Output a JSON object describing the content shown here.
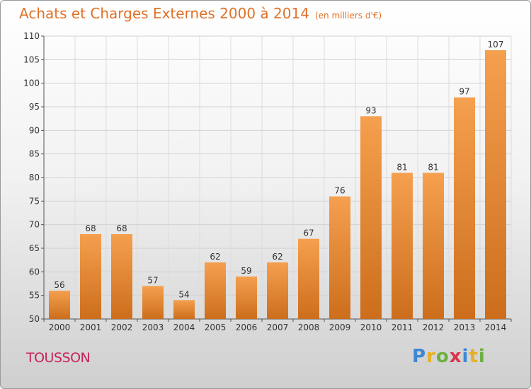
{
  "title": "Achats et Charges Externes 2000 à 2014",
  "unit": "(en milliers d'€)",
  "place": "TOUSSON",
  "logo": {
    "letters": [
      "P",
      "r",
      "o",
      "x",
      "i",
      "t",
      "i"
    ],
    "colors": [
      "#3d87d6",
      "#e8b020",
      "#6cb040",
      "#d8354a",
      "#3d87d6",
      "#e8b020",
      "#6cb040"
    ]
  },
  "chart_data": {
    "type": "bar",
    "categories": [
      "2000",
      "2001",
      "2002",
      "2003",
      "2004",
      "2005",
      "2006",
      "2007",
      "2008",
      "2009",
      "2010",
      "2011",
      "2012",
      "2013",
      "2014"
    ],
    "values": [
      56,
      68,
      68,
      57,
      54,
      62,
      59,
      62,
      67,
      76,
      93,
      81,
      81,
      97,
      107
    ],
    "ylim": [
      50,
      110
    ],
    "yticks": [
      50,
      55,
      60,
      65,
      70,
      75,
      80,
      85,
      90,
      95,
      100,
      105,
      110
    ],
    "grid": true,
    "bar_color": "#ef8f3c"
  }
}
